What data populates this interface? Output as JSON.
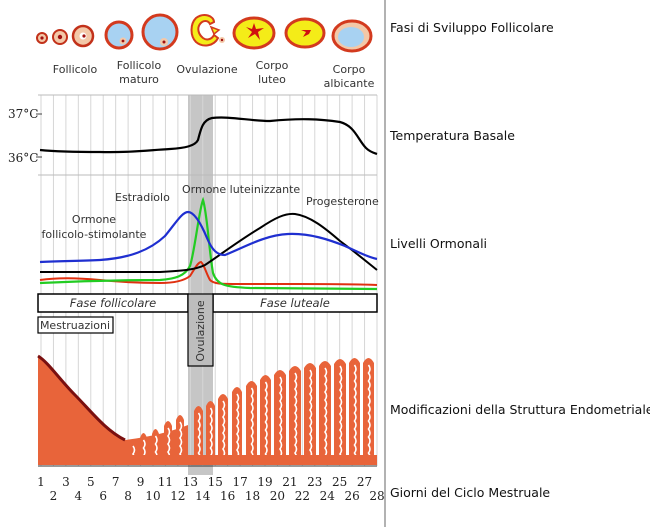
{
  "stages": {
    "title": "Fasi di Sviluppo Follicolare",
    "labels": [
      {
        "id": "follicolo",
        "lines": [
          "Follicolo"
        ]
      },
      {
        "id": "follicolo-maturo",
        "lines": [
          "Follicolo",
          "maturo"
        ]
      },
      {
        "id": "ovulazione",
        "lines": [
          "Ovulazione"
        ]
      },
      {
        "id": "corpo-luteo",
        "lines": [
          "Corpo",
          "luteo"
        ]
      },
      {
        "id": "corpo-albicante",
        "lines": [
          "Corpo",
          "albicante"
        ]
      }
    ]
  },
  "temperature": {
    "title": "Temperatura Basale",
    "tick_high": "37°C",
    "tick_low": "36°C"
  },
  "hormones": {
    "title": "Livelli Ormonali",
    "estradiol": "Estradiolo",
    "lh": "Ormone luteinizzante",
    "progesterone": "Progesterone",
    "fsh_line1": "Ormone",
    "fsh_line2": "follicolo-stimolante"
  },
  "phases": {
    "follicular": "Fase follicolare",
    "luteal": "Fase luteale",
    "menstruation": "Mestruazioni",
    "ovulation": "Ovulazione"
  },
  "endometrium": {
    "title": "Modificazioni della Struttura Endometriale"
  },
  "days": {
    "title": "Giorni del Ciclo Mestruale",
    "ticks": [
      "1",
      "2",
      "3",
      "4",
      "5",
      "6",
      "7",
      "8",
      "9",
      "10",
      "11",
      "12",
      "13",
      "14",
      "15",
      "16",
      "17",
      "18",
      "19",
      "20",
      "21",
      "22",
      "23",
      "24",
      "25",
      "26",
      "27",
      "28"
    ]
  },
  "colors": {
    "temperature_line": "#000000",
    "estradiol": "#1f2fd0",
    "lh": "#22cc22",
    "fsh": "#e03010",
    "progesterone": "#000000",
    "endometrium_fill": "#e8643a",
    "endometrium_dark": "#7a1010",
    "follicle_fill": "#a8d2f2",
    "corpus_luteum": "#f4ec18",
    "follicle_ring": "#d33a1e",
    "ovulation_band": "#c0c0c0"
  }
}
